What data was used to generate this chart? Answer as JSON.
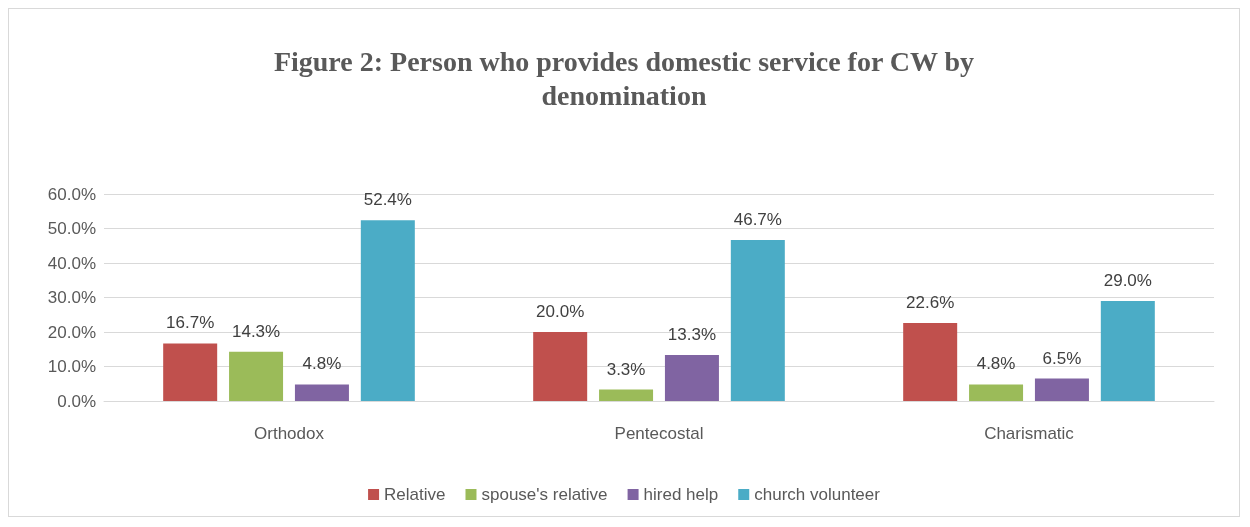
{
  "chart_data": {
    "type": "bar",
    "title": "Figure 2: Person who provides domestic service for CW by\ndenomination",
    "categories": [
      "Orthodox",
      "Pentecostal",
      "Charismatic"
    ],
    "series": [
      {
        "name": "Relative",
        "color": "#c0504d",
        "values": [
          16.7,
          20.0,
          22.6
        ],
        "value_labels": [
          "16.7%",
          "20.0%",
          "22.6%"
        ]
      },
      {
        "name": "spouse's relative",
        "color": "#9bbb59",
        "values": [
          14.3,
          3.3,
          4.8
        ],
        "value_labels": [
          "14.3%",
          "3.3%",
          "4.8%"
        ]
      },
      {
        "name": "hired help",
        "color": "#8064a2",
        "values": [
          4.8,
          13.3,
          6.5
        ],
        "value_labels": [
          "4.8%",
          "13.3%",
          "6.5%"
        ]
      },
      {
        "name": "church volunteer",
        "color": "#4bacc6",
        "values": [
          52.4,
          46.7,
          29.0
        ],
        "value_labels": [
          "52.4%",
          "46.7%",
          "29.0%"
        ]
      }
    ],
    "ylim": [
      0,
      60
    ],
    "yticks": [
      {
        "value": 0,
        "label": "0.0%"
      },
      {
        "value": 10,
        "label": "10.0%"
      },
      {
        "value": 20,
        "label": "20.0%"
      },
      {
        "value": 30,
        "label": "30.0%"
      },
      {
        "value": 40,
        "label": "40.0%"
      },
      {
        "value": 50,
        "label": "50.0%"
      },
      {
        "value": 60,
        "label": "60.0%"
      }
    ],
    "grid": "y",
    "legend": "bottom"
  }
}
